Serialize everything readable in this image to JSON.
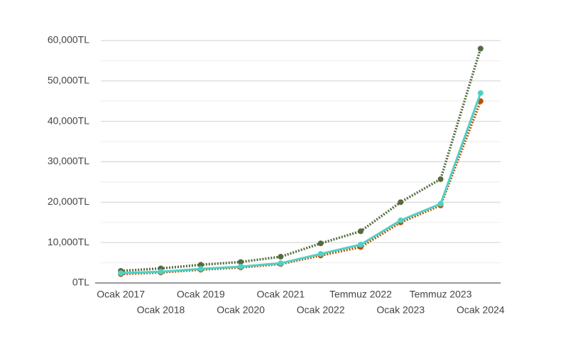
{
  "chart_data": {
    "type": "line",
    "categories": [
      "Ocak 2017",
      "Ocak 2018",
      "Ocak 2019",
      "Ocak 2020",
      "Ocak 2021",
      "Ocak 2022",
      "Temmuz 2022",
      "Ocak 2023",
      "Temmuz 2023",
      "Ocak 2024"
    ],
    "series": [
      {
        "color": "#b5530c",
        "dash": "dotted",
        "values": [
          2200,
          2600,
          3300,
          3850,
          4700,
          6800,
          8900,
          15000,
          19200,
          45000
        ]
      },
      {
        "color": "#556b3f",
        "dash": "dotted",
        "values": [
          3000,
          3600,
          4500,
          5200,
          6500,
          9800,
          12800,
          20000,
          25700,
          58000
        ]
      },
      {
        "color": "#4fd1c5",
        "dash": "solid",
        "values": [
          2450,
          2800,
          3500,
          4050,
          4900,
          7200,
          9500,
          15500,
          19600,
          47000
        ]
      }
    ],
    "ylim": [
      0,
      60000
    ],
    "yticks": [
      {
        "value": 0,
        "label": "0TL"
      },
      {
        "value": 10000,
        "label": "10,000TL"
      },
      {
        "value": 20000,
        "label": "20,000TL"
      },
      {
        "value": 30000,
        "label": "30,000TL"
      },
      {
        "value": 40000,
        "label": "40,000TL"
      },
      {
        "value": 50000,
        "label": "50,000TL"
      },
      {
        "value": 60000,
        "label": "60,000TL"
      }
    ],
    "minor_yticks": [
      5000,
      15000,
      25000,
      35000,
      45000,
      55000
    ],
    "grid": true
  }
}
